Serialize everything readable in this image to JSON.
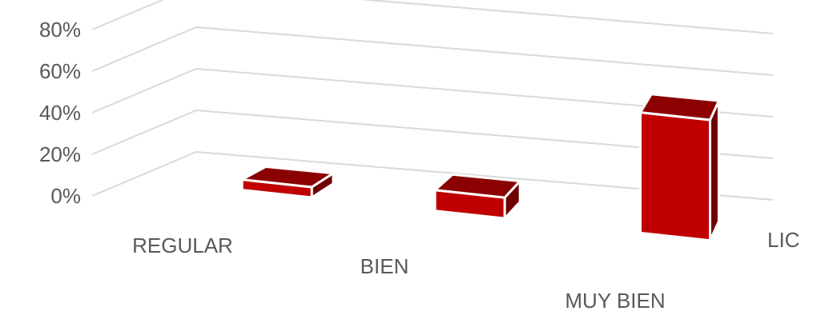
{
  "chart_data": {
    "type": "bar",
    "categories": [
      "REGULAR",
      "BIEN",
      "MUY BIEN"
    ],
    "series": [
      {
        "name": "LIC",
        "values": [
          5,
          10,
          58
        ]
      }
    ],
    "yticks": [
      "0%",
      "20%",
      "40%",
      "60%",
      "80%"
    ],
    "ylim": [
      0,
      80
    ],
    "y_unit": "%",
    "grid": true,
    "projection": "3d",
    "colors": {
      "front": "#c00000",
      "top": "#8b0000",
      "side": "#6e0000",
      "edge": "#ffffff",
      "grid": "#d9d9d9",
      "text": "#595959"
    }
  }
}
